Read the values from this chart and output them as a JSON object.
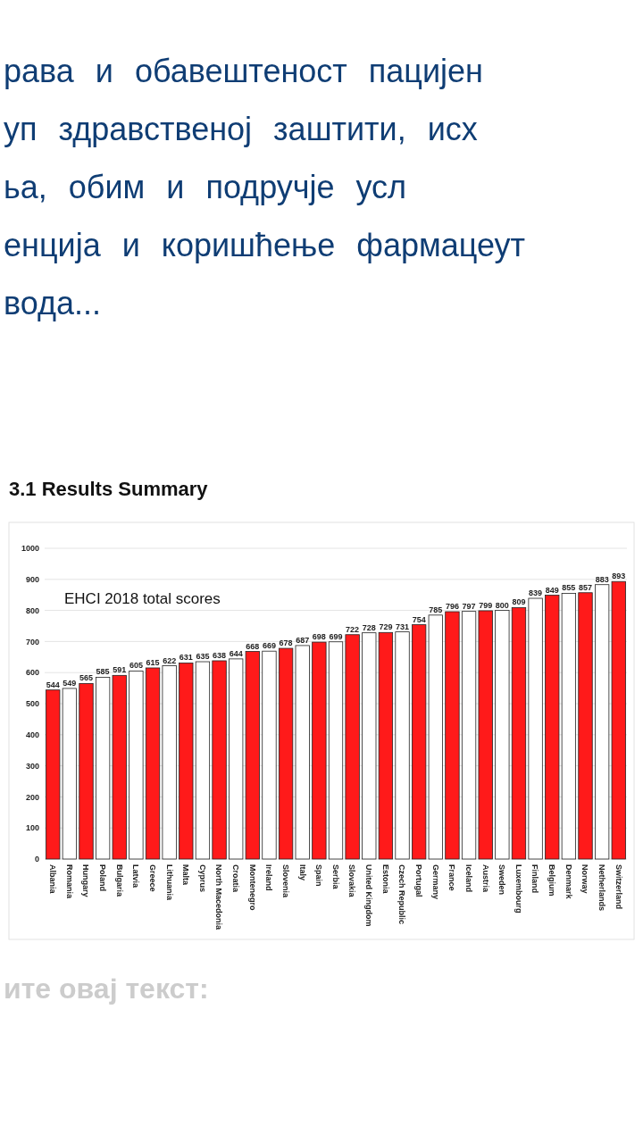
{
  "chart_data": {
    "type": "bar",
    "title": "3.1 Results Summary",
    "subtitle": "EHCI 2018 total scores",
    "categories": [
      "Albania",
      "Romania",
      "Hungary",
      "Poland",
      "Bulgaria",
      "Latvia",
      "Greece",
      "Lithuania",
      "Malta",
      "Cyprus",
      "North Macedonia",
      "Croatia",
      "Montenegro",
      "Ireland",
      "Slovenia",
      "Italy",
      "Spain",
      "Serbia",
      "Slovakia",
      "United Kingdom",
      "Estonia",
      "Czech Republic",
      "Portugal",
      "Germany",
      "France",
      "Iceland",
      "Austria",
      "Sweden",
      "Luxembourg",
      "Finland",
      "Belgium",
      "Denmark",
      "Norway",
      "Netherlands",
      "Switzerland"
    ],
    "values": [
      544,
      549,
      565,
      585,
      591,
      605,
      615,
      622,
      631,
      635,
      638,
      644,
      668,
      669,
      678,
      687,
      698,
      699,
      722,
      728,
      729,
      731,
      754,
      785,
      796,
      797,
      799,
      800,
      809,
      839,
      849,
      855,
      857,
      883,
      893
    ],
    "colors": [
      "#ff1a1a",
      "#ffffff",
      "#ff1a1a",
      "#ffffff",
      "#ff1a1a",
      "#ffffff",
      "#ff1a1a",
      "#ffffff",
      "#ff1a1a",
      "#ffffff",
      "#ff1a1a",
      "#ffffff",
      "#ff1a1a",
      "#ffffff",
      "#ff1a1a",
      "#ffffff",
      "#ff1a1a",
      "#ffffff",
      "#ff1a1a",
      "#ffffff",
      "#ff1a1a",
      "#ffffff",
      "#ff1a1a",
      "#ffffff",
      "#ff1a1a",
      "#ffffff",
      "#ff1a1a",
      "#ffffff",
      "#ff1a1a",
      "#ffffff",
      "#ff1a1a",
      "#ffffff",
      "#ff1a1a",
      "#ffffff",
      "#ff1a1a"
    ],
    "ylim": [
      0,
      1000
    ],
    "yticks": [
      0,
      100,
      200,
      300,
      400,
      500,
      600,
      700,
      800,
      900,
      1000
    ],
    "grid": "y",
    "data_labels": true,
    "annotations": [
      "рава и обавештеност пацијен",
      "уп здравственој заштити, исх",
      "ьа, обим и подручје усл",
      "енција и коришћење фармацеут",
      "вода...",
      "ите овај текст:"
    ]
  }
}
